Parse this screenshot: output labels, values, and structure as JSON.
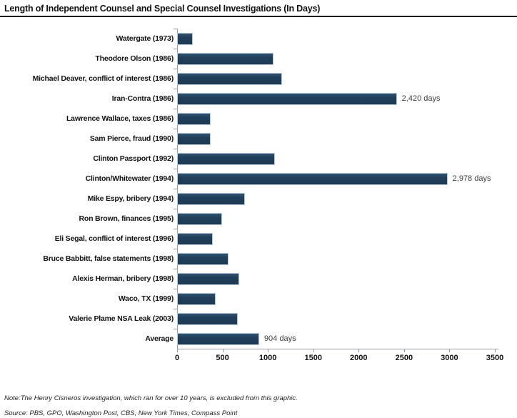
{
  "header": {
    "title": "Length of Independent Counsel and Special Counsel Investigations (In Days)"
  },
  "chart_data": {
    "type": "bar",
    "orientation": "horizontal",
    "title": "Length of Independent Counsel and Special Counsel Investigations (In Days)",
    "xlabel": "",
    "ylabel": "",
    "xlim": [
      0,
      3500
    ],
    "x_ticks": [
      0,
      500,
      1000,
      1500,
      2000,
      2500,
      3000,
      3500
    ],
    "grid": false,
    "legend": "none",
    "bar_color": "#1f3b54",
    "bar_border_color": "#b7cbdc",
    "axis_color": "#959ba1",
    "rows": [
      {
        "label": "Watergate (1973)",
        "value": 170,
        "annotation": ""
      },
      {
        "label": "Theodore Olson (1986)",
        "value": 1060,
        "annotation": ""
      },
      {
        "label": "Michael Deaver, conflict of interest (1986)",
        "value": 1160,
        "annotation": ""
      },
      {
        "label": "Iran-Contra (1986)",
        "value": 2420,
        "annotation": "2,420 days"
      },
      {
        "label": "Lawrence Wallace, taxes (1986)",
        "value": 370,
        "annotation": ""
      },
      {
        "label": "Sam Pierce, fraud (1990)",
        "value": 370,
        "annotation": ""
      },
      {
        "label": "Clinton Passport (1992)",
        "value": 1080,
        "annotation": ""
      },
      {
        "label": "Clinton/Whitewater (1994)",
        "value": 2978,
        "annotation": "2,978 days"
      },
      {
        "label": "Mike Espy, bribery (1994)",
        "value": 750,
        "annotation": ""
      },
      {
        "label": "Ron Brown, finances (1995)",
        "value": 495,
        "annotation": ""
      },
      {
        "label": "Eli Segal, conflict of interest (1996)",
        "value": 390,
        "annotation": ""
      },
      {
        "label": "Bruce Babbitt, false statements (1998)",
        "value": 565,
        "annotation": ""
      },
      {
        "label": "Alexis Herman, bribery (1998)",
        "value": 685,
        "annotation": ""
      },
      {
        "label": "Waco, TX (1999)",
        "value": 425,
        "annotation": ""
      },
      {
        "label": "Valerie Plame NSA Leak (2003)",
        "value": 670,
        "annotation": ""
      },
      {
        "label": "Average",
        "value": 904,
        "annotation": "904 days"
      }
    ],
    "note": "Note:The Henry Cisneros investigation, which ran for over 10 years, is excluded from this graphic.",
    "source": "Source: PBS, GPO, Washington Post, CBS, New York Times, Compass Point"
  }
}
